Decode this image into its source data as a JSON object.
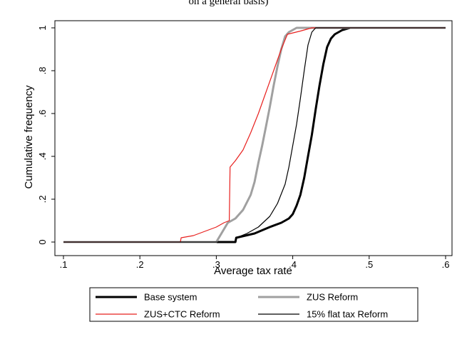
{
  "page": {
    "title": "on a general basis)"
  },
  "chart_data": {
    "type": "line",
    "title": "",
    "xlabel": "Average tax rate",
    "ylabel": "Cumulative frequency",
    "xlim": [
      0.1,
      0.6
    ],
    "ylim": [
      0,
      1
    ],
    "xticks": [
      0.1,
      0.2,
      0.3,
      0.4,
      0.5,
      0.6
    ],
    "xtick_labels": [
      ".1",
      ".2",
      ".3",
      ".4",
      ".5",
      ".6"
    ],
    "yticks": [
      0,
      0.2,
      0.4,
      0.6,
      0.8,
      1
    ],
    "ytick_labels": [
      "0",
      ".2",
      ".4",
      ".6",
      ".8",
      "1"
    ],
    "grid": false,
    "legend_position": "bottom",
    "series": [
      {
        "name": "Base system",
        "color": "#000000",
        "style": "thick",
        "points": [
          [
            0.1,
            0
          ],
          [
            0.325,
            0
          ],
          [
            0.326,
            0.02
          ],
          [
            0.35,
            0.04
          ],
          [
            0.37,
            0.07
          ],
          [
            0.385,
            0.09
          ],
          [
            0.39,
            0.1
          ],
          [
            0.395,
            0.11
          ],
          [
            0.4,
            0.13
          ],
          [
            0.405,
            0.17
          ],
          [
            0.41,
            0.22
          ],
          [
            0.415,
            0.3
          ],
          [
            0.42,
            0.4
          ],
          [
            0.425,
            0.5
          ],
          [
            0.43,
            0.62
          ],
          [
            0.435,
            0.73
          ],
          [
            0.44,
            0.83
          ],
          [
            0.445,
            0.91
          ],
          [
            0.45,
            0.95
          ],
          [
            0.455,
            0.97
          ],
          [
            0.465,
            0.99
          ],
          [
            0.475,
            1.0
          ],
          [
            0.6,
            1.0
          ]
        ]
      },
      {
        "name": "ZUS Reform",
        "color": "#a0a0a0",
        "style": "thick",
        "points": [
          [
            0.1,
            0
          ],
          [
            0.3,
            0
          ],
          [
            0.315,
            0.09
          ],
          [
            0.325,
            0.11
          ],
          [
            0.335,
            0.15
          ],
          [
            0.345,
            0.22
          ],
          [
            0.35,
            0.28
          ],
          [
            0.355,
            0.37
          ],
          [
            0.36,
            0.45
          ],
          [
            0.365,
            0.54
          ],
          [
            0.37,
            0.63
          ],
          [
            0.375,
            0.73
          ],
          [
            0.38,
            0.82
          ],
          [
            0.385,
            0.9
          ],
          [
            0.39,
            0.96
          ],
          [
            0.395,
            0.98
          ],
          [
            0.405,
            1.0
          ],
          [
            0.6,
            1.0
          ]
        ]
      },
      {
        "name": "ZUS+CTC Reform",
        "color": "#e8201e",
        "style": "thin",
        "points": [
          [
            0.1,
            0
          ],
          [
            0.253,
            0
          ],
          [
            0.254,
            0.02
          ],
          [
            0.27,
            0.03
          ],
          [
            0.285,
            0.05
          ],
          [
            0.3,
            0.07
          ],
          [
            0.31,
            0.09
          ],
          [
            0.317,
            0.1
          ],
          [
            0.318,
            0.35
          ],
          [
            0.325,
            0.38
          ],
          [
            0.335,
            0.43
          ],
          [
            0.345,
            0.51
          ],
          [
            0.355,
            0.6
          ],
          [
            0.365,
            0.7
          ],
          [
            0.375,
            0.8
          ],
          [
            0.385,
            0.9
          ],
          [
            0.393,
            0.97
          ],
          [
            0.41,
            0.985
          ],
          [
            0.425,
            1.0
          ],
          [
            0.6,
            1.0
          ]
        ]
      },
      {
        "name": "15% flat tax Reform",
        "color": "#000000",
        "style": "thin",
        "points": [
          [
            0.1,
            0
          ],
          [
            0.325,
            0
          ],
          [
            0.326,
            0.02
          ],
          [
            0.34,
            0.04
          ],
          [
            0.355,
            0.07
          ],
          [
            0.37,
            0.12
          ],
          [
            0.38,
            0.18
          ],
          [
            0.39,
            0.27
          ],
          [
            0.395,
            0.35
          ],
          [
            0.4,
            0.45
          ],
          [
            0.405,
            0.55
          ],
          [
            0.41,
            0.67
          ],
          [
            0.415,
            0.8
          ],
          [
            0.42,
            0.92
          ],
          [
            0.425,
            0.98
          ],
          [
            0.43,
            1.0
          ],
          [
            0.6,
            1.0
          ]
        ]
      }
    ]
  }
}
